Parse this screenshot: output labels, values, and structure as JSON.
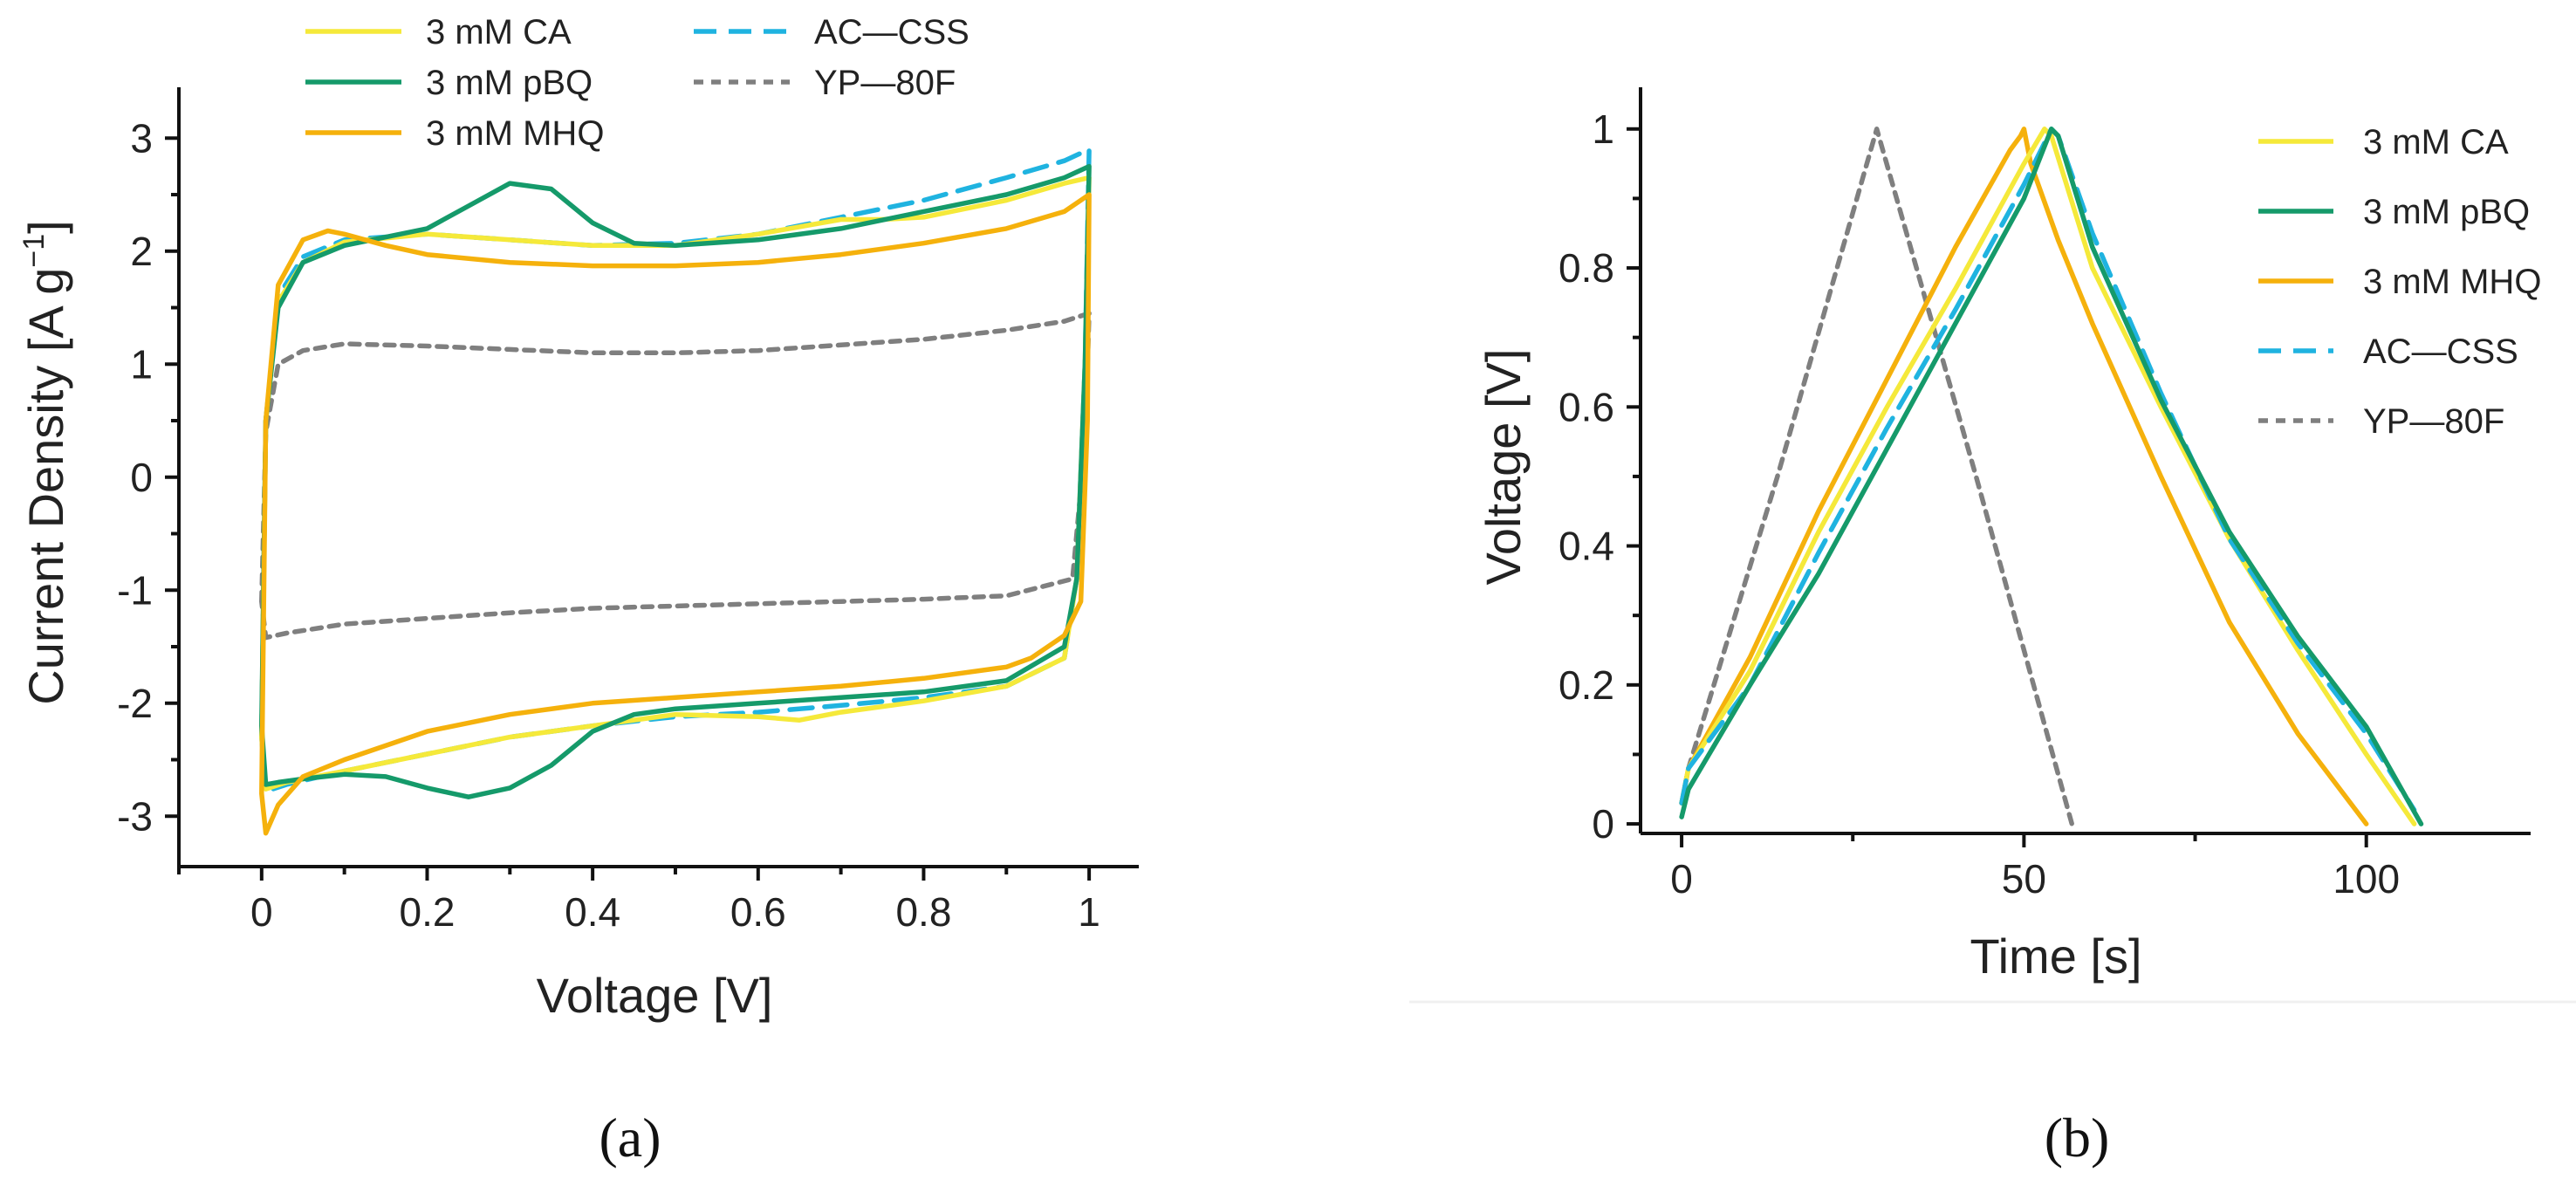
{
  "chart_data": [
    {
      "id": "a",
      "type": "line",
      "panel_label": "(a)",
      "xlabel": "Voltage [V]",
      "ylabel": "Current Density [A g",
      "ylabel_sup": "−1",
      "ylabel_end": "]",
      "xlim": [
        -0.1,
        1.06
      ],
      "ylim": [
        -3.5,
        3.45
      ],
      "xticks": [
        0,
        0.2,
        0.4,
        0.6,
        0.8,
        1
      ],
      "xtick_labels": [
        "0",
        "0.2",
        "0.4",
        "0.6",
        "0.8",
        "1"
      ],
      "yticks": [
        -3,
        -2,
        -1,
        0,
        1,
        2,
        3
      ],
      "ytick_labels": [
        "-3",
        "-2",
        "-1",
        "0",
        "1",
        "2",
        "3"
      ],
      "legend": [
        {
          "name": "3 mM CA",
          "color": "#f5e93a",
          "dash": "solid"
        },
        {
          "name": "AC—CSS",
          "color": "#1fb3e0",
          "dash": "dashed"
        },
        {
          "name": "3 mM pBQ",
          "color": "#159a6a",
          "dash": "solid"
        },
        {
          "name": "YP—80F",
          "color": "#7f7f7f",
          "dash": "dotted"
        },
        {
          "name": "3 mM MHQ",
          "color": "#f5b10c",
          "dash": "solid"
        }
      ],
      "series": [
        {
          "name": "YP—80F",
          "color": "#7f7f7f",
          "dash": "dotted",
          "x": [
            0,
            0.005,
            0.02,
            0.05,
            0.1,
            0.2,
            0.3,
            0.4,
            0.5,
            0.6,
            0.7,
            0.8,
            0.9,
            0.97,
            1,
            0.995,
            0.98,
            0.9,
            0.8,
            0.7,
            0.6,
            0.5,
            0.4,
            0.3,
            0.2,
            0.1,
            0.03,
            0.005,
            0
          ],
          "y": [
            -1.1,
            0.4,
            1.0,
            1.12,
            1.18,
            1.16,
            1.13,
            1.1,
            1.1,
            1.12,
            1.17,
            1.22,
            1.3,
            1.38,
            1.45,
            0.3,
            -0.9,
            -1.05,
            -1.08,
            -1.1,
            -1.12,
            -1.14,
            -1.16,
            -1.2,
            -1.25,
            -1.3,
            -1.38,
            -1.42,
            -1.1
          ]
        },
        {
          "name": "AC—CSS",
          "color": "#1fb3e0",
          "dash": "dashed",
          "x": [
            0,
            0.005,
            0.02,
            0.05,
            0.1,
            0.2,
            0.3,
            0.4,
            0.5,
            0.6,
            0.7,
            0.8,
            0.9,
            0.97,
            1,
            0.995,
            0.985,
            0.97,
            0.9,
            0.8,
            0.7,
            0.6,
            0.5,
            0.4,
            0.3,
            0.2,
            0.1,
            0.03,
            0.005,
            0
          ],
          "y": [
            -2.3,
            0.5,
            1.6,
            1.95,
            2.1,
            2.15,
            2.1,
            2.05,
            2.07,
            2.15,
            2.3,
            2.45,
            2.65,
            2.8,
            2.9,
            1.0,
            -0.9,
            -1.6,
            -1.85,
            -1.95,
            -2.02,
            -2.08,
            -2.12,
            -2.2,
            -2.3,
            -2.45,
            -2.6,
            -2.72,
            -2.78,
            -2.3
          ]
        },
        {
          "name": "3 mM CA",
          "color": "#f5e93a",
          "dash": "solid",
          "x": [
            0,
            0.005,
            0.02,
            0.05,
            0.1,
            0.2,
            0.3,
            0.4,
            0.5,
            0.6,
            0.7,
            0.75,
            0.8,
            0.9,
            0.97,
            1,
            0.995,
            0.985,
            0.97,
            0.9,
            0.8,
            0.7,
            0.65,
            0.6,
            0.5,
            0.4,
            0.3,
            0.2,
            0.1,
            0.03,
            0.005,
            0
          ],
          "y": [
            -2.3,
            0.5,
            1.55,
            1.9,
            2.08,
            2.15,
            2.1,
            2.05,
            2.05,
            2.15,
            2.28,
            2.28,
            2.3,
            2.45,
            2.6,
            2.65,
            1.0,
            -0.9,
            -1.6,
            -1.85,
            -1.98,
            -2.08,
            -2.15,
            -2.12,
            -2.1,
            -2.2,
            -2.3,
            -2.45,
            -2.6,
            -2.7,
            -2.76,
            -2.3
          ]
        },
        {
          "name": "3 mM pBQ",
          "color": "#159a6a",
          "dash": "solid",
          "x": [
            0,
            0.005,
            0.02,
            0.05,
            0.1,
            0.2,
            0.25,
            0.3,
            0.35,
            0.4,
            0.45,
            0.5,
            0.6,
            0.7,
            0.8,
            0.9,
            0.97,
            1,
            0.995,
            0.985,
            0.97,
            0.9,
            0.8,
            0.7,
            0.6,
            0.5,
            0.45,
            0.4,
            0.35,
            0.3,
            0.25,
            0.2,
            0.15,
            0.1,
            0.05,
            0.02,
            0.005,
            0
          ],
          "y": [
            -2.2,
            0.5,
            1.5,
            1.9,
            2.05,
            2.2,
            2.4,
            2.6,
            2.55,
            2.25,
            2.07,
            2.05,
            2.1,
            2.2,
            2.35,
            2.5,
            2.65,
            2.75,
            1.0,
            -0.9,
            -1.5,
            -1.8,
            -1.9,
            -1.95,
            -2.0,
            -2.05,
            -2.1,
            -2.25,
            -2.55,
            -2.75,
            -2.83,
            -2.75,
            -2.65,
            -2.63,
            -2.67,
            -2.7,
            -2.72,
            -2.2
          ]
        },
        {
          "name": "3 mM MHQ",
          "color": "#f5b10c",
          "dash": "solid",
          "x": [
            0,
            0.005,
            0.02,
            0.05,
            0.08,
            0.1,
            0.15,
            0.2,
            0.3,
            0.4,
            0.5,
            0.6,
            0.7,
            0.8,
            0.9,
            0.97,
            1,
            0.998,
            0.99,
            0.97,
            0.93,
            0.9,
            0.8,
            0.7,
            0.6,
            0.5,
            0.4,
            0.3,
            0.2,
            0.1,
            0.05,
            0.02,
            0.005,
            0
          ],
          "y": [
            -2.8,
            0.5,
            1.7,
            2.1,
            2.18,
            2.15,
            2.05,
            1.97,
            1.9,
            1.87,
            1.87,
            1.9,
            1.97,
            2.07,
            2.2,
            2.35,
            2.5,
            0.5,
            -1.1,
            -1.4,
            -1.6,
            -1.68,
            -1.78,
            -1.85,
            -1.9,
            -1.95,
            -2.0,
            -2.1,
            -2.25,
            -2.5,
            -2.65,
            -2.9,
            -3.15,
            -2.8
          ]
        }
      ]
    },
    {
      "id": "b",
      "type": "line",
      "panel_label": "(b)",
      "xlabel": "Time [s]",
      "ylabel": "Voltage [V]",
      "xlim": [
        -6,
        124
      ],
      "ylim": [
        -0.02,
        1.06
      ],
      "xticks": [
        0,
        50,
        100
      ],
      "xtick_labels": [
        "0",
        "50",
        "100"
      ],
      "yticks": [
        0,
        0.2,
        0.4,
        0.6,
        0.8,
        1
      ],
      "ytick_labels": [
        "0",
        "0.2",
        "0.4",
        "0.6",
        "0.8",
        "1"
      ],
      "legend": [
        {
          "name": "3 mM CA",
          "color": "#f5e93a",
          "dash": "solid"
        },
        {
          "name": "3 mM pBQ",
          "color": "#159a6a",
          "dash": "solid"
        },
        {
          "name": "3 mM MHQ",
          "color": "#f5b10c",
          "dash": "solid"
        },
        {
          "name": "AC—CSS",
          "color": "#1fb3e0",
          "dash": "dashed"
        },
        {
          "name": "YP—80F",
          "color": "#7f7f7f",
          "dash": "dotted"
        }
      ],
      "series": [
        {
          "name": "YP—80F",
          "color": "#7f7f7f",
          "dash": "dotted",
          "x": [
            0,
            1,
            14,
            28.5,
            43,
            57
          ],
          "y": [
            0.03,
            0.08,
            0.5,
            1.0,
            0.5,
            0.0
          ]
        },
        {
          "name": "3 mM MHQ",
          "color": "#f5b10c",
          "dash": "solid",
          "x": [
            0,
            1,
            10,
            20,
            30,
            40,
            48,
            49.5,
            50,
            51,
            55,
            60,
            70,
            80,
            90,
            100
          ],
          "y": [
            0.03,
            0.08,
            0.24,
            0.45,
            0.64,
            0.83,
            0.97,
            0.99,
            1.0,
            0.95,
            0.84,
            0.72,
            0.5,
            0.29,
            0.13,
            0.0
          ]
        },
        {
          "name": "3 mM CA",
          "color": "#f5e93a",
          "dash": "solid",
          "x": [
            0,
            1,
            10,
            20,
            30,
            40,
            50,
            53,
            54,
            60,
            70,
            80,
            90,
            100,
            107
          ],
          "y": [
            0.03,
            0.08,
            0.22,
            0.42,
            0.6,
            0.77,
            0.95,
            1.0,
            0.99,
            0.8,
            0.6,
            0.41,
            0.25,
            0.1,
            0.0
          ]
        },
        {
          "name": "AC—CSS",
          "color": "#1fb3e0",
          "dash": "dashed",
          "x": [
            0,
            1,
            10,
            20,
            30,
            40,
            50,
            54,
            55,
            60,
            70,
            80,
            90,
            100,
            107
          ],
          "y": [
            0.03,
            0.08,
            0.2,
            0.39,
            0.57,
            0.74,
            0.92,
            1.0,
            0.99,
            0.85,
            0.62,
            0.41,
            0.26,
            0.13,
            0.02
          ]
        },
        {
          "name": "3 mM pBQ",
          "color": "#159a6a",
          "dash": "solid",
          "x": [
            0,
            1,
            10,
            20,
            30,
            40,
            50,
            54,
            55,
            60,
            70,
            80,
            90,
            100,
            108
          ],
          "y": [
            0.01,
            0.05,
            0.2,
            0.36,
            0.54,
            0.72,
            0.9,
            1.0,
            0.99,
            0.83,
            0.61,
            0.42,
            0.27,
            0.14,
            0.0
          ]
        }
      ]
    }
  ]
}
